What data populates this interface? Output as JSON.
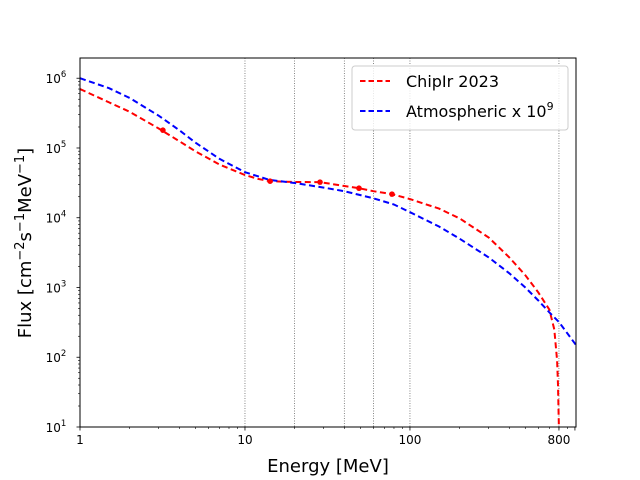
{
  "chart_data": {
    "type": "line",
    "title": "",
    "xlabel": "Energy [MeV]",
    "ylabel_parts": {
      "base": "Flux [cm",
      "e1": "−2",
      "mid": "s",
      "e2": "−1",
      "mid2": "MeV",
      "e3": "−1",
      "end": "]"
    },
    "xscale": "log",
    "yscale": "log",
    "xlim": [
      1,
      1015
    ],
    "ylim": [
      10,
      1950000
    ],
    "x_ticks": [
      {
        "value": 1,
        "label": "1"
      },
      {
        "value": 10,
        "label": "10"
      },
      {
        "value": 100,
        "label": "100"
      },
      {
        "value": 800,
        "label": "800"
      }
    ],
    "y_ticks": [
      {
        "value": 10,
        "base": "10",
        "exp": "1"
      },
      {
        "value": 100,
        "base": "10",
        "exp": "2"
      },
      {
        "value": 1000,
        "base": "10",
        "exp": "3"
      },
      {
        "value": 10000,
        "base": "10",
        "exp": "4"
      },
      {
        "value": 100000,
        "base": "10",
        "exp": "5"
      },
      {
        "value": 1000000,
        "base": "10",
        "exp": "6"
      }
    ],
    "vertical_reference_lines": [
      10,
      20,
      40,
      60,
      100,
      800
    ],
    "legend": {
      "placement": "top-right",
      "entries": [
        {
          "label": "ChipIr 2023",
          "color": "#ff0000",
          "style": "dashed"
        },
        {
          "label_base": "Atmospheric x 10",
          "label_exp": "9",
          "color": "#0000ff",
          "style": "dashed"
        }
      ]
    },
    "series": [
      {
        "name": "ChipIr 2023",
        "color": "#ff0000",
        "style": "dashed",
        "x": [
          1,
          1.5,
          2,
          3,
          4,
          5,
          7,
          10,
          12,
          14.2,
          20,
          28.5,
          40,
          49.1,
          60,
          77.8,
          100,
          150,
          200,
          300,
          400,
          500,
          600,
          700,
          750,
          780,
          790,
          795,
          800
        ],
        "y": [
          700000,
          450000,
          330000,
          190000,
          125000,
          90000,
          58000,
          41000,
          36000,
          33400,
          32500,
          32400,
          28500,
          26500,
          24000,
          21800,
          18500,
          13500,
          9800,
          5200,
          2700,
          1500,
          850,
          480,
          250,
          90,
          40,
          18,
          10
        ]
      },
      {
        "name": "Atmospheric x 10^9",
        "color": "#0000ff",
        "style": "dashed",
        "x": [
          1,
          1.5,
          2,
          3,
          4,
          5,
          7,
          10,
          14,
          20,
          30,
          40,
          60,
          80,
          100,
          150,
          200,
          300,
          400,
          500,
          600,
          700,
          800,
          1015
        ],
        "y": [
          1000000,
          720000,
          520000,
          290000,
          180000,
          120000,
          70000,
          45000,
          35000,
          31500,
          27000,
          24000,
          19000,
          15500,
          12000,
          7500,
          5000,
          2700,
          1600,
          1000,
          650,
          440,
          320,
          150
        ]
      }
    ],
    "markers": {
      "series": "ChipIr 2023",
      "color": "#ff0000",
      "points": [
        {
          "x": 3.18,
          "y": 180000
        },
        {
          "x": 14.2,
          "y": 33400
        },
        {
          "x": 28.5,
          "y": 32400
        },
        {
          "x": 49.1,
          "y": 26500
        },
        {
          "x": 77.8,
          "y": 21800
        }
      ]
    },
    "grid": false
  }
}
